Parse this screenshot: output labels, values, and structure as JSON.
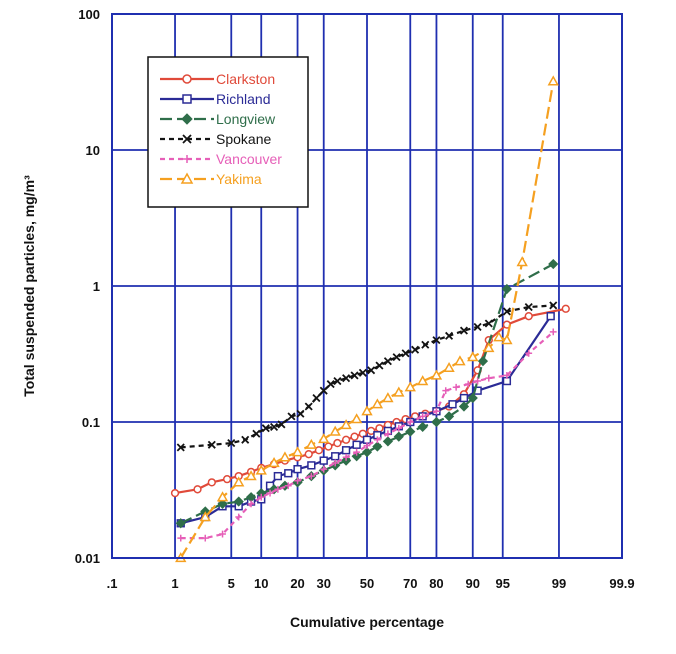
{
  "chart_data": {
    "type": "line",
    "xlabel": "Cumulative percentage",
    "ylabel": "Total suspended particles, mg/m³",
    "x_scale": "normal-probability",
    "y_scale": "log",
    "xlim": [
      0.1,
      99.9
    ],
    "ylim": [
      0.01,
      100
    ],
    "x_ticks": [
      0.1,
      1,
      5,
      10,
      20,
      30,
      50,
      70,
      80,
      90,
      95,
      99,
      99.9
    ],
    "x_tick_labels": [
      ".1",
      "1",
      "5",
      "10",
      "20",
      "30",
      "50",
      "70",
      "80",
      "90",
      "95",
      "99",
      "99.9"
    ],
    "y_ticks": [
      0.01,
      0.1,
      1,
      10,
      100
    ],
    "y_tick_labels": [
      "0.01",
      "0.1",
      "1",
      "10",
      "100"
    ],
    "grid": true,
    "legend": {
      "placement": "top-left"
    },
    "series": [
      {
        "name": "Clarkston",
        "color": "#e04a3a",
        "dash": "solid",
        "marker": "circle",
        "points": [
          [
            1,
            0.03
          ],
          [
            2,
            0.032
          ],
          [
            3,
            0.036
          ],
          [
            4.5,
            0.038
          ],
          [
            6,
            0.04
          ],
          [
            8,
            0.043
          ],
          [
            10,
            0.046
          ],
          [
            13,
            0.049
          ],
          [
            16,
            0.052
          ],
          [
            20,
            0.055
          ],
          [
            24,
            0.058
          ],
          [
            28,
            0.062
          ],
          [
            32,
            0.066
          ],
          [
            36,
            0.07
          ],
          [
            40,
            0.074
          ],
          [
            44,
            0.078
          ],
          [
            48,
            0.082
          ],
          [
            52,
            0.086
          ],
          [
            56,
            0.09
          ],
          [
            60,
            0.095
          ],
          [
            64,
            0.1
          ],
          [
            68,
            0.105
          ],
          [
            72,
            0.11
          ],
          [
            76,
            0.115
          ],
          [
            80,
            0.12
          ],
          [
            84,
            0.13
          ],
          [
            88,
            0.16
          ],
          [
            91,
            0.24
          ],
          [
            93,
            0.4
          ],
          [
            95.5,
            0.52
          ],
          [
            97.5,
            0.6
          ],
          [
            99.2,
            0.68
          ]
        ]
      },
      {
        "name": "Richland",
        "color": "#2b2b96",
        "dash": "solid",
        "marker": "square",
        "points": [
          [
            1.2,
            0.018
          ],
          [
            2.5,
            0.02
          ],
          [
            4,
            0.024
          ],
          [
            6,
            0.024
          ],
          [
            8,
            0.026
          ],
          [
            10,
            0.027
          ],
          [
            12,
            0.034
          ],
          [
            14,
            0.04
          ],
          [
            17,
            0.042
          ],
          [
            20,
            0.045
          ],
          [
            25,
            0.048
          ],
          [
            30,
            0.052
          ],
          [
            35,
            0.056
          ],
          [
            40,
            0.062
          ],
          [
            45,
            0.068
          ],
          [
            50,
            0.074
          ],
          [
            55,
            0.08
          ],
          [
            60,
            0.086
          ],
          [
            65,
            0.093
          ],
          [
            70,
            0.1
          ],
          [
            75,
            0.11
          ],
          [
            80,
            0.12
          ],
          [
            85,
            0.135
          ],
          [
            88,
            0.15
          ],
          [
            91,
            0.17
          ],
          [
            95.5,
            0.2
          ],
          [
            98.7,
            0.6
          ]
        ]
      },
      {
        "name": "Longview",
        "color": "#2f6e4a",
        "dash": "longdash",
        "marker": "diamond",
        "points": [
          [
            1.2,
            0.018
          ],
          [
            2.5,
            0.022
          ],
          [
            4,
            0.025
          ],
          [
            6,
            0.026
          ],
          [
            8,
            0.028
          ],
          [
            10,
            0.03
          ],
          [
            13,
            0.032
          ],
          [
            16,
            0.034
          ],
          [
            20,
            0.036
          ],
          [
            25,
            0.04
          ],
          [
            30,
            0.044
          ],
          [
            35,
            0.048
          ],
          [
            40,
            0.052
          ],
          [
            45,
            0.056
          ],
          [
            50,
            0.06
          ],
          [
            55,
            0.066
          ],
          [
            60,
            0.072
          ],
          [
            65,
            0.078
          ],
          [
            70,
            0.085
          ],
          [
            75,
            0.092
          ],
          [
            80,
            0.1
          ],
          [
            84,
            0.11
          ],
          [
            88,
            0.13
          ],
          [
            90,
            0.15
          ],
          [
            92,
            0.28
          ],
          [
            95.5,
            0.95
          ],
          [
            98.8,
            1.45
          ]
        ]
      },
      {
        "name": "Spokane",
        "color": "#141414",
        "dash": "dash",
        "marker": "x",
        "points": [
          [
            1.2,
            0.065
          ],
          [
            3,
            0.068
          ],
          [
            5,
            0.07
          ],
          [
            7,
            0.074
          ],
          [
            9,
            0.082
          ],
          [
            11,
            0.09
          ],
          [
            13,
            0.092
          ],
          [
            15,
            0.096
          ],
          [
            18,
            0.11
          ],
          [
            21,
            0.115
          ],
          [
            24,
            0.13
          ],
          [
            27,
            0.15
          ],
          [
            30,
            0.17
          ],
          [
            33,
            0.19
          ],
          [
            36,
            0.2
          ],
          [
            40,
            0.21
          ],
          [
            44,
            0.22
          ],
          [
            48,
            0.23
          ],
          [
            52,
            0.24
          ],
          [
            56,
            0.26
          ],
          [
            60,
            0.28
          ],
          [
            64,
            0.3
          ],
          [
            68,
            0.32
          ],
          [
            72,
            0.34
          ],
          [
            76,
            0.37
          ],
          [
            80,
            0.4
          ],
          [
            84,
            0.43
          ],
          [
            88,
            0.47
          ],
          [
            91,
            0.5
          ],
          [
            93,
            0.53
          ],
          [
            95.5,
            0.65
          ],
          [
            97.5,
            0.7
          ],
          [
            98.8,
            0.72
          ]
        ]
      },
      {
        "name": "Vancouver",
        "color": "#e65fb8",
        "dash": "dash",
        "marker": "plus",
        "points": [
          [
            1.2,
            0.014
          ],
          [
            2.5,
            0.014
          ],
          [
            4,
            0.015
          ],
          [
            6,
            0.02
          ],
          [
            8,
            0.025
          ],
          [
            10,
            0.028
          ],
          [
            12,
            0.03
          ],
          [
            14,
            0.032
          ],
          [
            17,
            0.034
          ],
          [
            20,
            0.037
          ],
          [
            25,
            0.04
          ],
          [
            30,
            0.045
          ],
          [
            35,
            0.05
          ],
          [
            40,
            0.055
          ],
          [
            45,
            0.06
          ],
          [
            50,
            0.067
          ],
          [
            55,
            0.074
          ],
          [
            60,
            0.082
          ],
          [
            65,
            0.09
          ],
          [
            70,
            0.1
          ],
          [
            75,
            0.11
          ],
          [
            80,
            0.12
          ],
          [
            83,
            0.17
          ],
          [
            86,
            0.18
          ],
          [
            89,
            0.19
          ],
          [
            91,
            0.2
          ],
          [
            93,
            0.21
          ],
          [
            95.5,
            0.22
          ],
          [
            97.5,
            0.32
          ],
          [
            98.8,
            0.46
          ]
        ]
      },
      {
        "name": "Yakima",
        "color": "#f5a020",
        "dash": "longdash",
        "marker": "triangle",
        "points": [
          [
            1.2,
            0.01
          ],
          [
            2.5,
            0.02
          ],
          [
            4,
            0.028
          ],
          [
            6,
            0.036
          ],
          [
            8,
            0.04
          ],
          [
            10,
            0.044
          ],
          [
            13,
            0.05
          ],
          [
            16,
            0.055
          ],
          [
            20,
            0.06
          ],
          [
            25,
            0.068
          ],
          [
            30,
            0.075
          ],
          [
            35,
            0.085
          ],
          [
            40,
            0.095
          ],
          [
            45,
            0.105
          ],
          [
            50,
            0.12
          ],
          [
            55,
            0.135
          ],
          [
            60,
            0.15
          ],
          [
            65,
            0.165
          ],
          [
            70,
            0.18
          ],
          [
            75,
            0.2
          ],
          [
            80,
            0.22
          ],
          [
            84,
            0.25
          ],
          [
            87,
            0.28
          ],
          [
            90,
            0.3
          ],
          [
            93,
            0.35
          ],
          [
            94.5,
            0.42
          ],
          [
            95.5,
            0.4
          ],
          [
            97,
            1.5
          ],
          [
            98.8,
            32
          ]
        ]
      }
    ]
  }
}
